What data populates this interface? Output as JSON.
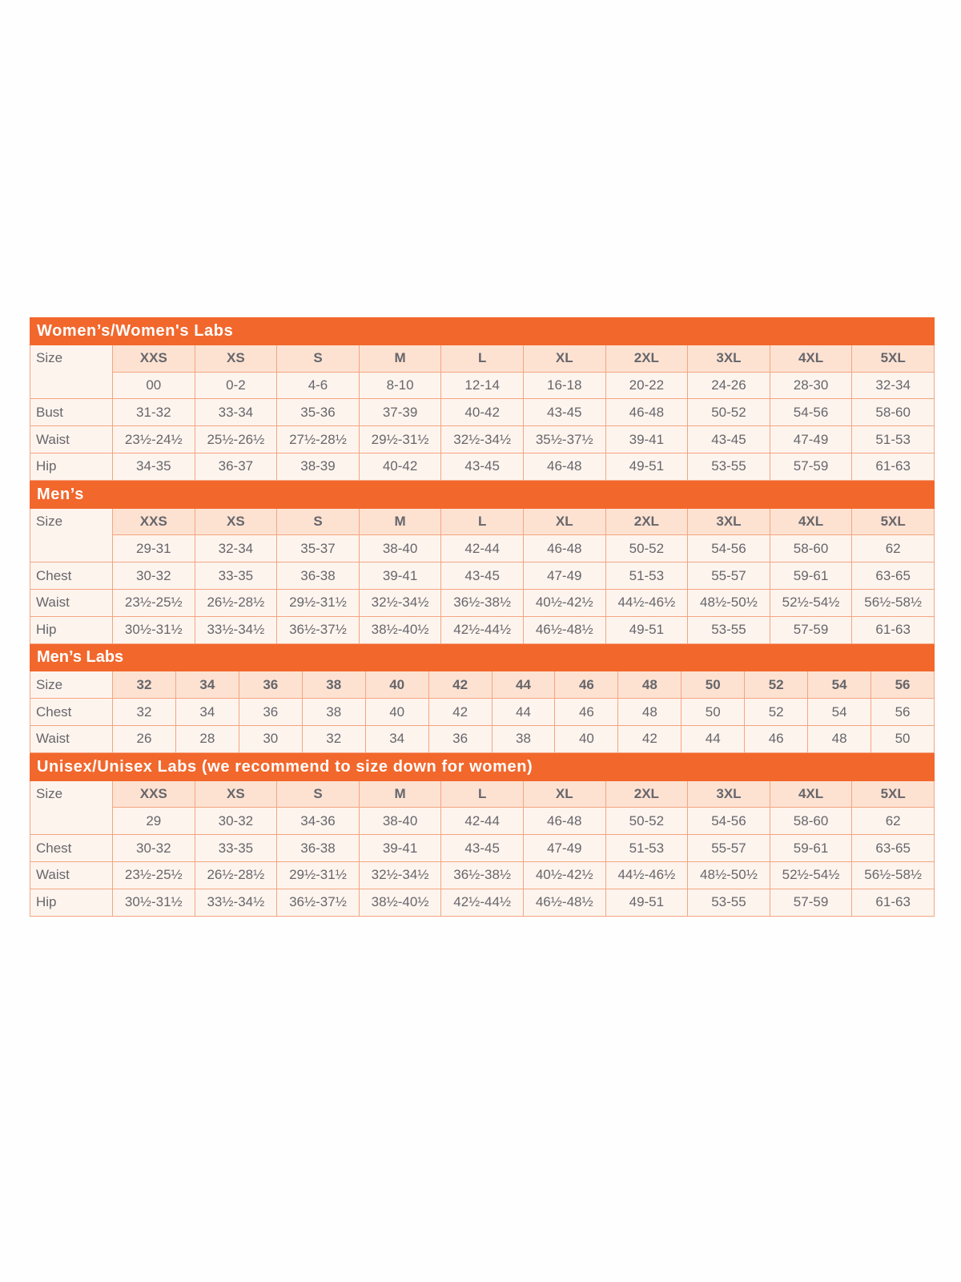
{
  "colors": {
    "header": "#f2672c",
    "size_cell": "#fde2d2",
    "cell": "#fef4ee",
    "border": "#f4a582",
    "text": "#66666b"
  },
  "sections": [
    {
      "title": "Women’s/Women's Labs",
      "size_label": "Size",
      "sizes": [
        "XXS",
        "XS",
        "S",
        "M",
        "L",
        "XL",
        "2XL",
        "3XL",
        "4XL",
        "5XL"
      ],
      "sub_sizes": [
        "00",
        "0-2",
        "4-6",
        "8-10",
        "12-14",
        "16-18",
        "20-22",
        "24-26",
        "28-30",
        "32-34"
      ],
      "rows": [
        {
          "label": "Bust",
          "values": [
            "31-32",
            "33-34",
            "35-36",
            "37-39",
            "40-42",
            "43-45",
            "46-48",
            "50-52",
            "54-56",
            "58-60"
          ]
        },
        {
          "label": "Waist",
          "values": [
            "23½-24½",
            "25½-26½",
            "27½-28½",
            "29½-31½",
            "32½-34½",
            "35½-37½",
            "39-41",
            "43-45",
            "47-49",
            "51-53"
          ]
        },
        {
          "label": "Hip",
          "values": [
            "34-35",
            "36-37",
            "38-39",
            "40-42",
            "43-45",
            "46-48",
            "49-51",
            "53-55",
            "57-59",
            "61-63"
          ]
        }
      ]
    },
    {
      "title": "Men’s",
      "size_label": "Size",
      "sizes": [
        "XXS",
        "XS",
        "S",
        "M",
        "L",
        "XL",
        "2XL",
        "3XL",
        "4XL",
        "5XL"
      ],
      "sub_sizes": [
        "29-31",
        "32-34",
        "35-37",
        "38-40",
        "42-44",
        "46-48",
        "50-52",
        "54-56",
        "58-60",
        "62"
      ],
      "rows": [
        {
          "label": "Chest",
          "values": [
            "30-32",
            "33-35",
            "36-38",
            "39-41",
            "43-45",
            "47-49",
            "51-53",
            "55-57",
            "59-61",
            "63-65"
          ]
        },
        {
          "label": "Waist",
          "values": [
            "23½-25½",
            "26½-28½",
            "29½-31½",
            "32½-34½",
            "36½-38½",
            "40½-42½",
            "44½-46½",
            "48½-50½",
            "52½-54½",
            "56½-58½"
          ]
        },
        {
          "label": "Hip",
          "values": [
            "30½-31½",
            "33½-34½",
            "36½-37½",
            "38½-40½",
            "42½-44½",
            "46½-48½",
            "49-51",
            "53-55",
            "57-59",
            "61-63"
          ]
        }
      ]
    },
    {
      "title": "Men’s Labs",
      "condensed": true,
      "size_label": "Size",
      "sizes": [
        "32",
        "34",
        "36",
        "38",
        "40",
        "42",
        "44",
        "46",
        "48",
        "50",
        "52",
        "54",
        "56"
      ],
      "rows": [
        {
          "label": "Chest",
          "values": [
            "32",
            "34",
            "36",
            "38",
            "40",
            "42",
            "44",
            "46",
            "48",
            "50",
            "52",
            "54",
            "56"
          ]
        },
        {
          "label": "Waist",
          "values": [
            "26",
            "28",
            "30",
            "32",
            "34",
            "36",
            "38",
            "40",
            "42",
            "44",
            "46",
            "48",
            "50"
          ]
        }
      ]
    },
    {
      "title": "Unisex/Unisex Labs (we recommend to size down for women)",
      "size_label": "Size",
      "sizes": [
        "XXS",
        "XS",
        "S",
        "M",
        "L",
        "XL",
        "2XL",
        "3XL",
        "4XL",
        "5XL"
      ],
      "sub_sizes": [
        "29",
        "30-32",
        "34-36",
        "38-40",
        "42-44",
        "46-48",
        "50-52",
        "54-56",
        "58-60",
        "62"
      ],
      "rows": [
        {
          "label": "Chest",
          "values": [
            "30-32",
            "33-35",
            "36-38",
            "39-41",
            "43-45",
            "47-49",
            "51-53",
            "55-57",
            "59-61",
            "63-65"
          ]
        },
        {
          "label": "Waist",
          "values": [
            "23½-25½",
            "26½-28½",
            "29½-31½",
            "32½-34½",
            "36½-38½",
            "40½-42½",
            "44½-46½",
            "48½-50½",
            "52½-54½",
            "56½-58½"
          ]
        },
        {
          "label": "Hip",
          "values": [
            "30½-31½",
            "33½-34½",
            "36½-37½",
            "38½-40½",
            "42½-44½",
            "46½-48½",
            "49-51",
            "53-55",
            "57-59",
            "61-63"
          ]
        }
      ]
    }
  ]
}
